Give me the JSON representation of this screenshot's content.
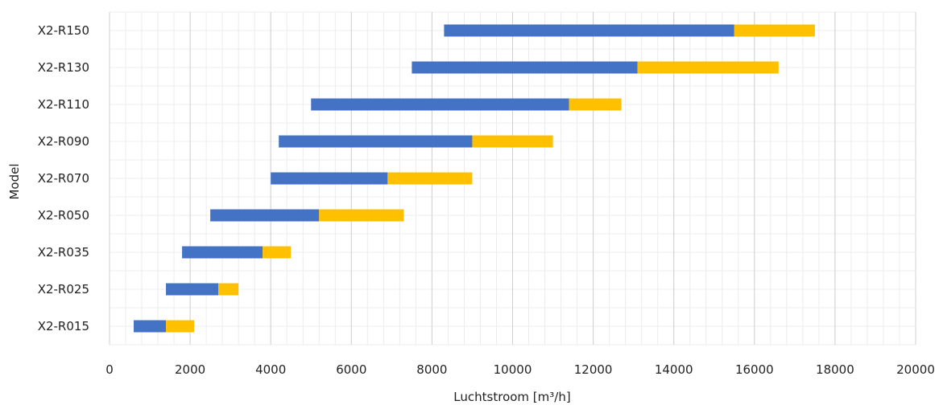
{
  "chart_data": {
    "type": "bar",
    "orientation": "horizontal",
    "stacked": true,
    "xlabel": "Luchtstroom [m³/h]",
    "ylabel": "Model",
    "xlim": [
      0,
      20000
    ],
    "xticks": [
      0,
      2000,
      4000,
      6000,
      8000,
      10000,
      12000,
      14000,
      16000,
      18000,
      20000
    ],
    "grid": true,
    "legend": "none",
    "categories": [
      "X2-R015",
      "X2-R025",
      "X2-R035",
      "X2-R050",
      "X2-R070",
      "X2-R090",
      "X2-R110",
      "X2-R130",
      "X2-R150"
    ],
    "series": [
      {
        "color": "#4472C4",
        "start": [
          600,
          1400,
          1800,
          2500,
          4000,
          4200,
          5000,
          7500,
          8300
        ],
        "end": [
          1400,
          2700,
          3800,
          5200,
          6900,
          9000,
          11400,
          13100,
          15500
        ]
      },
      {
        "color": "#FFC000",
        "start": [
          1400,
          2700,
          3800,
          5200,
          6900,
          9000,
          11400,
          13100,
          15500
        ],
        "end": [
          2100,
          3200,
          4500,
          7300,
          9000,
          11000,
          12700,
          16600,
          17500
        ]
      }
    ]
  }
}
